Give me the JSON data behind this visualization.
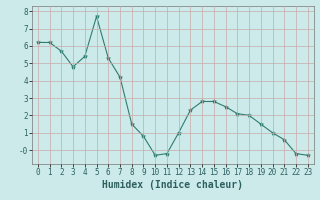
{
  "x": [
    0,
    1,
    2,
    3,
    4,
    5,
    6,
    7,
    8,
    9,
    10,
    11,
    12,
    13,
    14,
    15,
    16,
    17,
    18,
    19,
    20,
    21,
    22,
    23
  ],
  "y": [
    6.2,
    6.2,
    5.7,
    4.8,
    5.4,
    7.7,
    5.3,
    4.2,
    1.5,
    0.8,
    -0.3,
    -0.2,
    1.0,
    2.3,
    2.8,
    2.8,
    2.5,
    2.1,
    2.0,
    1.5,
    1.0,
    0.6,
    -0.2,
    -0.3
  ],
  "line_color": "#2e7d6e",
  "marker": "*",
  "marker_size": 3,
  "bg_color": "#cceaea",
  "grid_color": "#c8a8a8",
  "xlabel": "Humidex (Indice chaleur)",
  "xlabel_fontsize": 7,
  "tick_fontsize": 5.5,
  "ylim": [
    -0.8,
    8.3
  ],
  "xlim": [
    -0.5,
    23.5
  ],
  "yticks": [
    0,
    1,
    2,
    3,
    4,
    5,
    6,
    7,
    8
  ],
  "ytick_labels": [
    "-0",
    "1",
    "2",
    "3",
    "4",
    "5",
    "6",
    "7",
    "8"
  ],
  "xticks": [
    0,
    1,
    2,
    3,
    4,
    5,
    6,
    7,
    8,
    9,
    10,
    11,
    12,
    13,
    14,
    15,
    16,
    17,
    18,
    19,
    20,
    21,
    22,
    23
  ],
  "xtick_labels": [
    "0",
    "1",
    "2",
    "3",
    "4",
    "5",
    "6",
    "7",
    "8",
    "9",
    "10",
    "11",
    "12",
    "13",
    "14",
    "15",
    "16",
    "17",
    "18",
    "19",
    "20",
    "21",
    "22",
    "23"
  ]
}
